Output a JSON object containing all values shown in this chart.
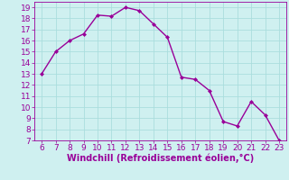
{
  "x": [
    6,
    7,
    8,
    9,
    10,
    11,
    12,
    13,
    14,
    15,
    16,
    17,
    18,
    19,
    20,
    21,
    22,
    23
  ],
  "y": [
    13.0,
    15.0,
    16.0,
    16.6,
    18.3,
    18.2,
    19.0,
    18.7,
    17.5,
    16.3,
    12.7,
    12.5,
    11.5,
    8.7,
    8.3,
    10.5,
    9.3,
    7.0
  ],
  "line_color": "#990099",
  "marker": "D",
  "marker_size": 2,
  "bg_color": "#cff0f0",
  "grid_color": "#aadddd",
  "xlabel": "Windchill (Refroidissement éolien,°C)",
  "xlabel_color": "#990099",
  "tick_color": "#990099",
  "xlim": [
    5.5,
    23.5
  ],
  "ylim": [
    7,
    19.5
  ],
  "xticks": [
    6,
    7,
    8,
    9,
    10,
    11,
    12,
    13,
    14,
    15,
    16,
    17,
    18,
    19,
    20,
    21,
    22,
    23
  ],
  "yticks": [
    7,
    8,
    9,
    10,
    11,
    12,
    13,
    14,
    15,
    16,
    17,
    18,
    19
  ],
  "xlabel_fontsize": 7,
  "tick_fontsize": 6.5,
  "line_width": 1.0
}
